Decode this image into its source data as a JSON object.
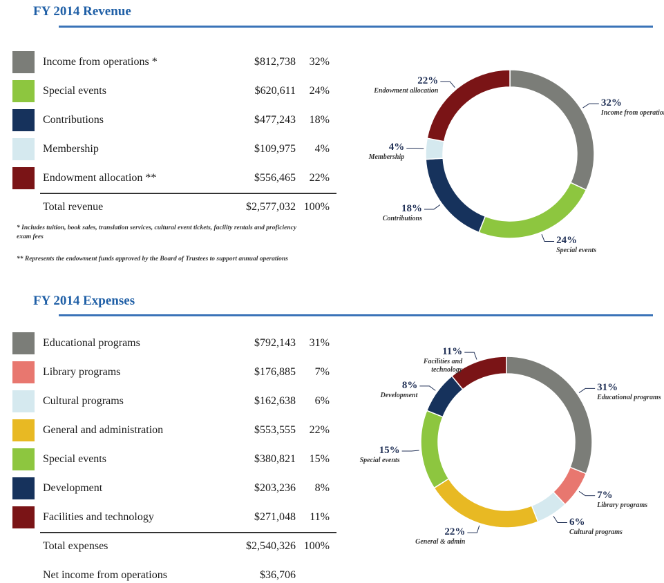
{
  "revenue": {
    "title": "FY 2014 Revenue",
    "rows": [
      {
        "name": "Income from operations *",
        "amount": "$812,738",
        "percent": "32%"
      },
      {
        "name": "Special events",
        "amount": "$620,611",
        "percent": "24%"
      },
      {
        "name": "Contributions",
        "amount": "$477,243",
        "percent": "18%"
      },
      {
        "name": "Membership",
        "amount": "$109,975",
        "percent": "4%"
      },
      {
        "name": "Endowment allocation **",
        "amount": "$556,465",
        "percent": "22%"
      }
    ],
    "total": {
      "name": "Total revenue",
      "amount": "$2,577,032",
      "percent": "100%"
    },
    "footnotes": [
      "* Includes tuition, book sales, translation services, cultural event tickets, facility rentals and proficiency exam fees",
      "** Represents the endowment funds approved by the Board of Trustees to support annual operations"
    ]
  },
  "expenses": {
    "title": "FY 2014 Expenses",
    "rows": [
      {
        "name": "Educational programs",
        "amount": "$792,143",
        "percent": "31%"
      },
      {
        "name": "Library programs",
        "amount": "$176,885",
        "percent": "7%"
      },
      {
        "name": "Cultural programs",
        "amount": "$162,638",
        "percent": "6%"
      },
      {
        "name": "General and administration",
        "amount": "$553,555",
        "percent": "22%"
      },
      {
        "name": "Special events",
        "amount": "$380,821",
        "percent": "15%"
      },
      {
        "name": "Development",
        "amount": "$203,236",
        "percent": "8%"
      },
      {
        "name": "Facilities and technology",
        "amount": "$271,048",
        "percent": "11%"
      }
    ],
    "total": {
      "name": "Total expenses",
      "amount": "$2,540,326",
      "percent": "100%"
    },
    "net": {
      "name": "Net income from operations",
      "amount": "$36,706"
    }
  },
  "chart_data": [
    {
      "type": "pie",
      "categories": [
        "Income from operations",
        "Special events",
        "Contributions",
        "Membership",
        "Endowment allocation"
      ],
      "values": [
        32,
        24,
        18,
        4,
        22
      ],
      "value_labels": [
        "32%",
        "24%",
        "18%",
        "4%",
        "22%"
      ],
      "colors": [
        "#7b7d78",
        "#8dc63f",
        "#16325c",
        "#d5e9ef",
        "#7a1416"
      ]
    },
    {
      "type": "pie",
      "categories": [
        "Educational programs",
        "Library programs",
        "Cultural programs",
        "General & admin",
        "Special events",
        "Development",
        "Facilities and technology"
      ],
      "values": [
        31,
        7,
        6,
        22,
        15,
        8,
        11
      ],
      "value_labels": [
        "31%",
        "7%",
        "6%",
        "22%",
        "15%",
        "8%",
        "11%"
      ],
      "colors": [
        "#7b7d78",
        "#e8776f",
        "#d5e9ef",
        "#e8b923",
        "#8dc63f",
        "#16325c",
        "#7a1416"
      ]
    }
  ]
}
